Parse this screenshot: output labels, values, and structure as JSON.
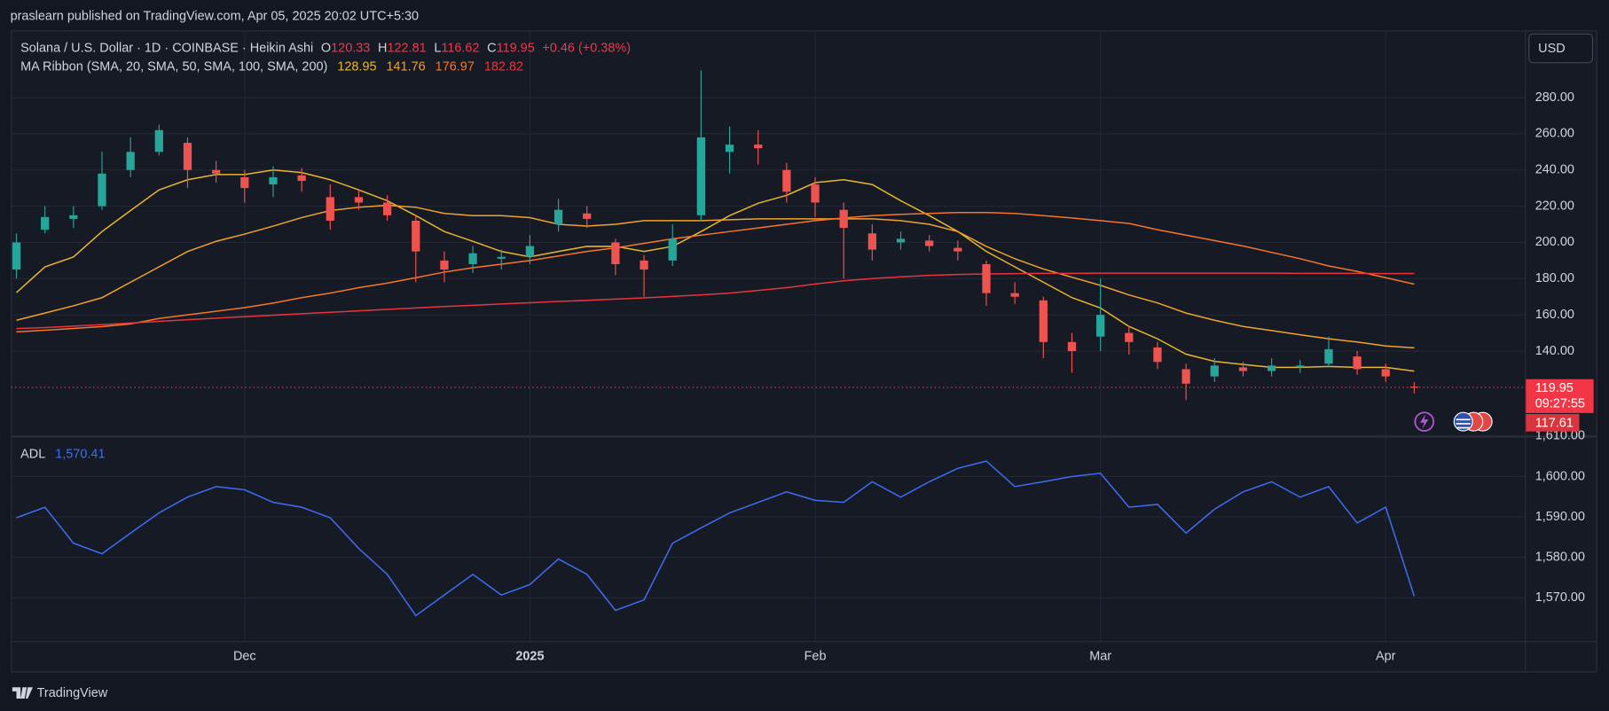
{
  "header": {
    "published": "praslearn published on TradingView.com, Apr 05, 2025 20:02 UTC+5:30"
  },
  "footer": {
    "brand": "TradingView"
  },
  "chart_data": [
    {
      "type": "candlestick",
      "symbol": "Solana / U.S. Dollar · 1D · COINBASE · Heikin Ashi",
      "ohlc_letters": [
        "O",
        "H",
        "L",
        "C"
      ],
      "change": "+0.46 (+0.38%)",
      "currency": "USD",
      "indicator": "MA Ribbon (SMA, 20, SMA, 50, SMA, 100, SMA, 200)",
      "up_color": "#26a69a",
      "down_color": "#ef5350",
      "categories": [
        null,
        null,
        null,
        null,
        null,
        null,
        null,
        null,
        "Dec",
        null,
        null,
        null,
        null,
        null,
        null,
        null,
        null,
        null,
        "2025",
        null,
        null,
        null,
        null,
        null,
        null,
        null,
        null,
        null,
        "Feb",
        null,
        null,
        null,
        null,
        null,
        null,
        null,
        null,
        null,
        "Mar",
        null,
        null,
        null,
        null,
        null,
        null,
        null,
        null,
        null,
        "Apr",
        null
      ],
      "open": [
        185,
        207,
        213,
        220,
        240,
        250,
        255,
        240,
        236,
        232,
        237,
        225,
        225,
        222,
        212,
        190,
        188,
        191,
        192,
        210,
        216,
        200,
        190,
        190,
        215,
        250,
        254,
        240,
        232,
        218,
        205,
        200,
        201,
        197,
        188,
        172,
        168,
        145,
        148,
        150,
        142,
        130,
        126,
        131,
        129,
        131,
        133,
        137,
        130,
        120.33
      ],
      "high": [
        205,
        220,
        220,
        250,
        258,
        265,
        258,
        245,
        240,
        242,
        241,
        232,
        229,
        226,
        215,
        195,
        198,
        196,
        204,
        224,
        220,
        202,
        193,
        210,
        295,
        264,
        262,
        244,
        236,
        222,
        210,
        206,
        204,
        201,
        190,
        178,
        170,
        150,
        180,
        154,
        145,
        133,
        136,
        134,
        136,
        135,
        148,
        140,
        133,
        122.81
      ],
      "low": [
        180,
        205,
        208,
        218,
        236,
        248,
        230,
        233,
        222,
        225,
        228,
        207,
        218,
        212,
        178,
        178,
        183,
        185,
        188,
        206,
        208,
        182,
        170,
        187,
        212,
        238,
        243,
        222,
        214,
        180,
        190,
        196,
        195,
        190,
        165,
        166,
        136,
        128,
        140,
        138,
        130,
        113,
        123,
        126,
        126,
        128,
        131,
        127,
        123,
        116.62
      ],
      "close": [
        200,
        214,
        215,
        238,
        250,
        262,
        240,
        238,
        230,
        236,
        234,
        212,
        222,
        215,
        195,
        185,
        194,
        192,
        198,
        218,
        213,
        188,
        185,
        202,
        258,
        254,
        252,
        228,
        222,
        208,
        196,
        202,
        198,
        195,
        172,
        170,
        145,
        140,
        160,
        145,
        134,
        122,
        132,
        129,
        132,
        132,
        141,
        130,
        126,
        119.95
      ],
      "series": [
        {
          "color": "#e8b52e",
          "values": [
            172.3,
            186.5,
            192,
            206,
            217.6,
            229,
            234.6,
            237.5,
            237.5,
            240,
            238.6,
            234.6,
            229,
            223,
            214.8,
            206,
            200.6,
            195,
            192,
            195,
            197.8,
            197.8,
            195,
            197.8,
            206,
            214.8,
            221.6,
            226,
            233,
            234.6,
            232,
            223,
            214.8,
            206,
            195,
            186.5,
            178,
            169.5,
            163.8,
            153.6,
            146.8,
            138.3,
            134.3,
            132.6,
            131,
            131,
            131.5,
            131,
            131,
            128.95
          ]
        },
        {
          "color": "#f0a22e",
          "values": [
            157,
            161,
            165,
            169.5,
            178,
            186.5,
            195,
            200.6,
            204.6,
            209,
            213.7,
            217.6,
            219.4,
            220.5,
            219.4,
            216,
            214.8,
            214.8,
            213.7,
            210,
            209,
            210,
            212,
            212,
            212,
            212.5,
            213,
            213,
            213,
            213,
            213,
            212,
            210,
            206,
            197.8,
            191,
            185.3,
            180.8,
            176.3,
            171,
            166.6,
            161,
            157,
            153.6,
            151.3,
            149,
            146.8,
            145,
            142.8,
            141.76
          ]
        },
        {
          "color": "#f5762a",
          "values": [
            150.6,
            151.5,
            152.5,
            153.5,
            155,
            158,
            160,
            162,
            164,
            166.5,
            169.5,
            172,
            175,
            177.5,
            180.5,
            183.6,
            186,
            188,
            190,
            192.5,
            195,
            197,
            199.5,
            202,
            204,
            206,
            208,
            210,
            212,
            213.5,
            214.8,
            215.5,
            216,
            216.5,
            216.5,
            216,
            214.8,
            213.5,
            212,
            210.5,
            207,
            204,
            201,
            198,
            194.5,
            191,
            187,
            184,
            180.5,
            176.97
          ]
        },
        {
          "color": "#e8353c",
          "values": [
            152.4,
            153,
            153.8,
            154.6,
            155.5,
            156.4,
            157.3,
            158.2,
            159,
            159.8,
            160.6,
            161.4,
            162.2,
            163,
            163.8,
            164.6,
            165.3,
            166,
            166.7,
            167.4,
            168,
            168.7,
            169.4,
            170.2,
            171,
            172,
            173.5,
            175,
            177,
            178.8,
            180,
            181,
            181.8,
            182.3,
            182.6,
            182.8,
            182.9,
            182.9,
            183,
            183,
            183,
            183,
            183,
            183,
            183,
            182.9,
            182.9,
            182.9,
            182.8,
            182.82
          ]
        }
      ],
      "countdown": "09:27:55",
      "marker_label": 117.61,
      "ylim": [
        93.1,
        316.8
      ],
      "yticks": [
        {
          "value": 140,
          "label": "140.00"
        },
        {
          "value": 160,
          "label": "160.00"
        },
        {
          "value": 180,
          "label": "180.00"
        },
        {
          "value": 200,
          "label": "200.00"
        },
        {
          "value": 220,
          "label": "220.00"
        },
        {
          "value": 240,
          "label": "240.00"
        },
        {
          "value": 260,
          "label": "260.00"
        },
        {
          "value": 280,
          "label": "280.00"
        }
      ],
      "grid": true
    },
    {
      "type": "line",
      "name": "ADL",
      "legend_value": "1,570.41",
      "color": "#3d6df2",
      "values": [
        1589.8,
        1592.4,
        1583.5,
        1580.9,
        1586,
        1591,
        1594.9,
        1597.5,
        1596.7,
        1593.6,
        1592.4,
        1589.8,
        1582.2,
        1575.8,
        1565.6,
        1570.7,
        1575.8,
        1570.7,
        1573.3,
        1579.6,
        1575.8,
        1566.9,
        1569.5,
        1583.5,
        1587.3,
        1591,
        1593.6,
        1596.2,
        1594.1,
        1593.6,
        1598.7,
        1594.9,
        1598.7,
        1602,
        1603.8,
        1597.5,
        1598.7,
        1600,
        1600.8,
        1592.4,
        1593.1,
        1586,
        1591.9,
        1596.2,
        1598.7,
        1594.9,
        1597.5,
        1588.5,
        1592.4,
        1570.41
      ],
      "ylim": [
        1559.3,
        1610
      ],
      "yticks": [
        {
          "value": 1570,
          "label": "1,570.00"
        },
        {
          "value": 1580,
          "label": "1,580.00"
        },
        {
          "value": 1590,
          "label": "1,590.00"
        },
        {
          "value": 1600,
          "label": "1,600.00"
        },
        {
          "value": 1610,
          "label": "1,610.00"
        }
      ],
      "grid": true
    }
  ]
}
